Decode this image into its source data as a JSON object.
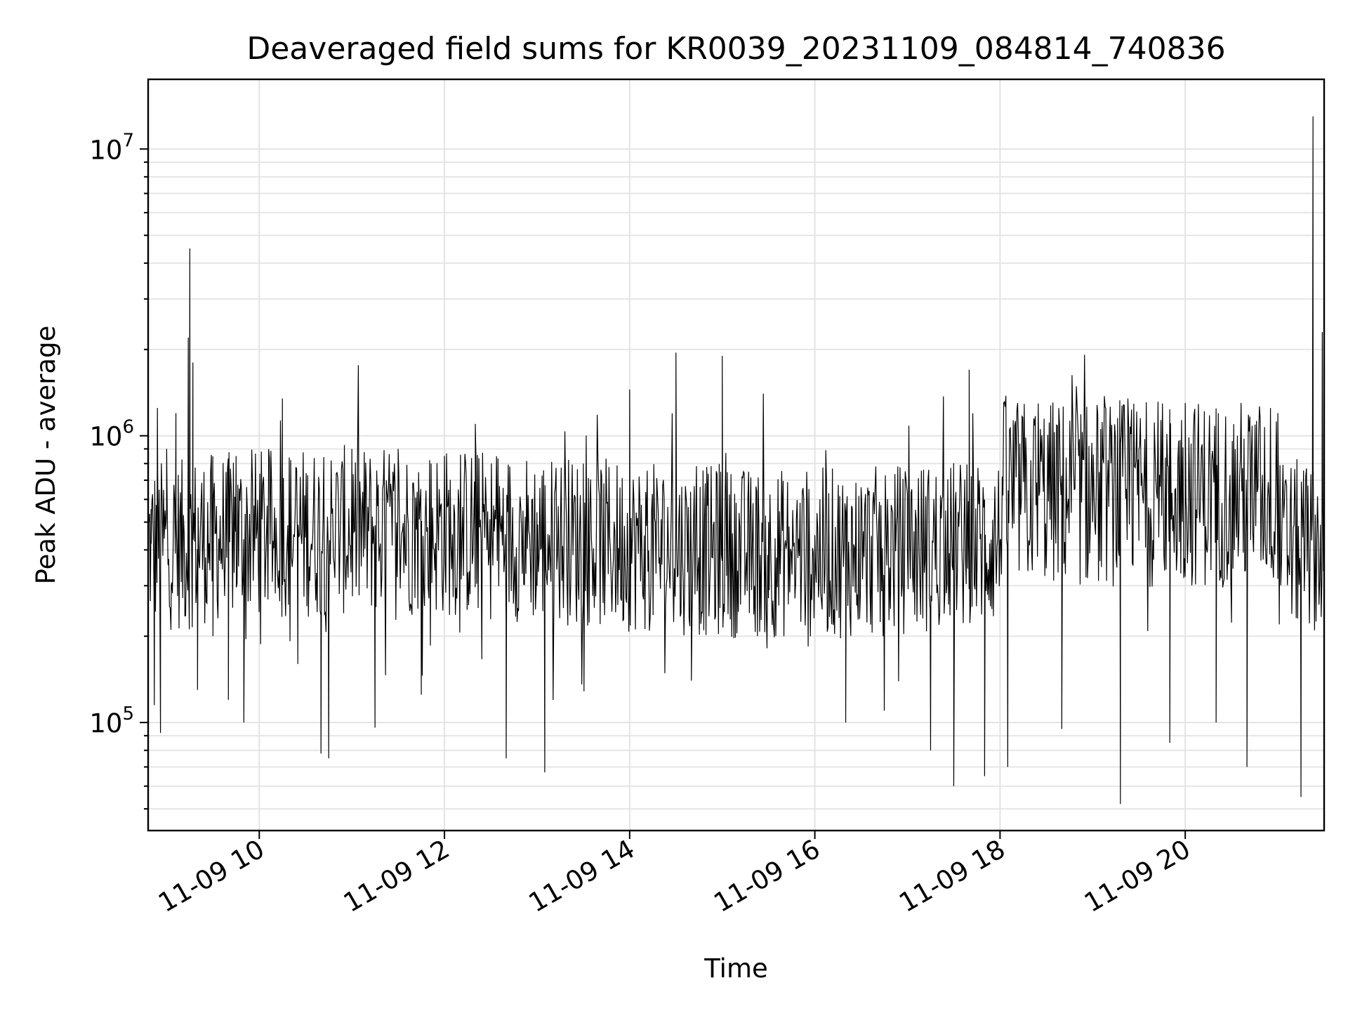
{
  "chart_data": {
    "type": "line",
    "title": "Deaveraged field sums for KR0039_20231109_084814_740836",
    "xlabel": "Time",
    "ylabel": "Peak ADU - average",
    "yscale": "log",
    "ylim": [
      42000,
      17500000
    ],
    "xlim": [
      "2023-11-09 08:48",
      "2023-11-09 21:30"
    ],
    "x_tick_labels": [
      "11-09 10",
      "11-09 12",
      "11-09 14",
      "11-09 16",
      "11-09 18",
      "11-09 20"
    ],
    "y_tick_labels": [
      {
        "base": "10",
        "exp": "5",
        "value": 100000
      },
      {
        "base": "10",
        "exp": "6",
        "value": 1000000
      },
      {
        "base": "10",
        "exp": "7",
        "value": 10000000
      }
    ],
    "grid": true,
    "line_color": "#000000",
    "series": [
      {
        "points": [
          [
            "2023-11-09 08:50",
            420000
          ],
          [
            "2023-11-09 08:52",
            115000
          ],
          [
            "2023-11-09 08:54",
            1250000
          ],
          [
            "2023-11-09 08:56",
            92000
          ],
          [
            "2023-11-09 09:00",
            900000
          ],
          [
            "2023-11-09 09:03",
            300000
          ],
          [
            "2023-11-09 09:06",
            1200000
          ],
          [
            "2023-11-09 09:10",
            700000
          ],
          [
            "2023-11-09 09:14",
            2200000
          ],
          [
            "2023-11-09 09:15",
            4500000
          ],
          [
            "2023-11-09 09:17",
            1800000
          ],
          [
            "2023-11-09 09:20",
            130000
          ],
          [
            "2023-11-09 09:30",
            200000
          ],
          [
            "2023-11-09 09:40",
            120000
          ],
          [
            "2023-11-09 09:45",
            850000
          ],
          [
            "2023-11-09 09:50",
            100000
          ],
          [
            "2023-11-09 10:00",
            500000
          ],
          [
            "2023-11-09 10:15",
            1350000
          ],
          [
            "2023-11-09 10:25",
            160000
          ],
          [
            "2023-11-09 10:40",
            78000
          ],
          [
            "2023-11-09 10:45",
            75000
          ],
          [
            "2023-11-09 11:00",
            900000
          ],
          [
            "2023-11-09 11:15",
            96000
          ],
          [
            "2023-11-09 11:30",
            900000
          ],
          [
            "2023-11-09 11:45",
            125000
          ],
          [
            "2023-11-09 12:00",
            850000
          ],
          [
            "2023-11-09 12:20",
            1100000
          ],
          [
            "2023-11-09 12:40",
            75000
          ],
          [
            "2023-11-09 13:00",
            300000
          ],
          [
            "2023-11-09 13:05",
            67000
          ],
          [
            "2023-11-09 13:30",
            800000
          ],
          [
            "2023-11-09 14:00",
            1450000
          ],
          [
            "2023-11-09 14:30",
            1950000
          ],
          [
            "2023-11-09 14:40",
            140000
          ],
          [
            "2023-11-09 15:00",
            1900000
          ],
          [
            "2023-11-09 15:30",
            500000
          ],
          [
            "2023-11-09 16:00",
            450000
          ],
          [
            "2023-11-09 16:20",
            100000
          ],
          [
            "2023-11-09 16:45",
            110000
          ],
          [
            "2023-11-09 17:00",
            400000
          ],
          [
            "2023-11-09 17:15",
            80000
          ],
          [
            "2023-11-09 17:30",
            60000
          ],
          [
            "2023-11-09 17:40",
            1700000
          ],
          [
            "2023-11-09 17:50",
            65000
          ],
          [
            "2023-11-09 18:05",
            70000
          ],
          [
            "2023-11-09 18:20",
            800000
          ],
          [
            "2023-11-09 18:40",
            95000
          ],
          [
            "2023-11-09 19:00",
            500000
          ],
          [
            "2023-11-09 19:18",
            52000
          ],
          [
            "2023-11-09 19:30",
            900000
          ],
          [
            "2023-11-09 19:50",
            85000
          ],
          [
            "2023-11-09 20:00",
            1300000
          ],
          [
            "2023-11-09 20:20",
            100000
          ],
          [
            "2023-11-09 20:40",
            70000
          ],
          [
            "2023-11-09 21:00",
            1200000
          ],
          [
            "2023-11-09 21:15",
            55000
          ],
          [
            "2023-11-09 21:30",
            600000
          ]
        ]
      }
    ]
  }
}
